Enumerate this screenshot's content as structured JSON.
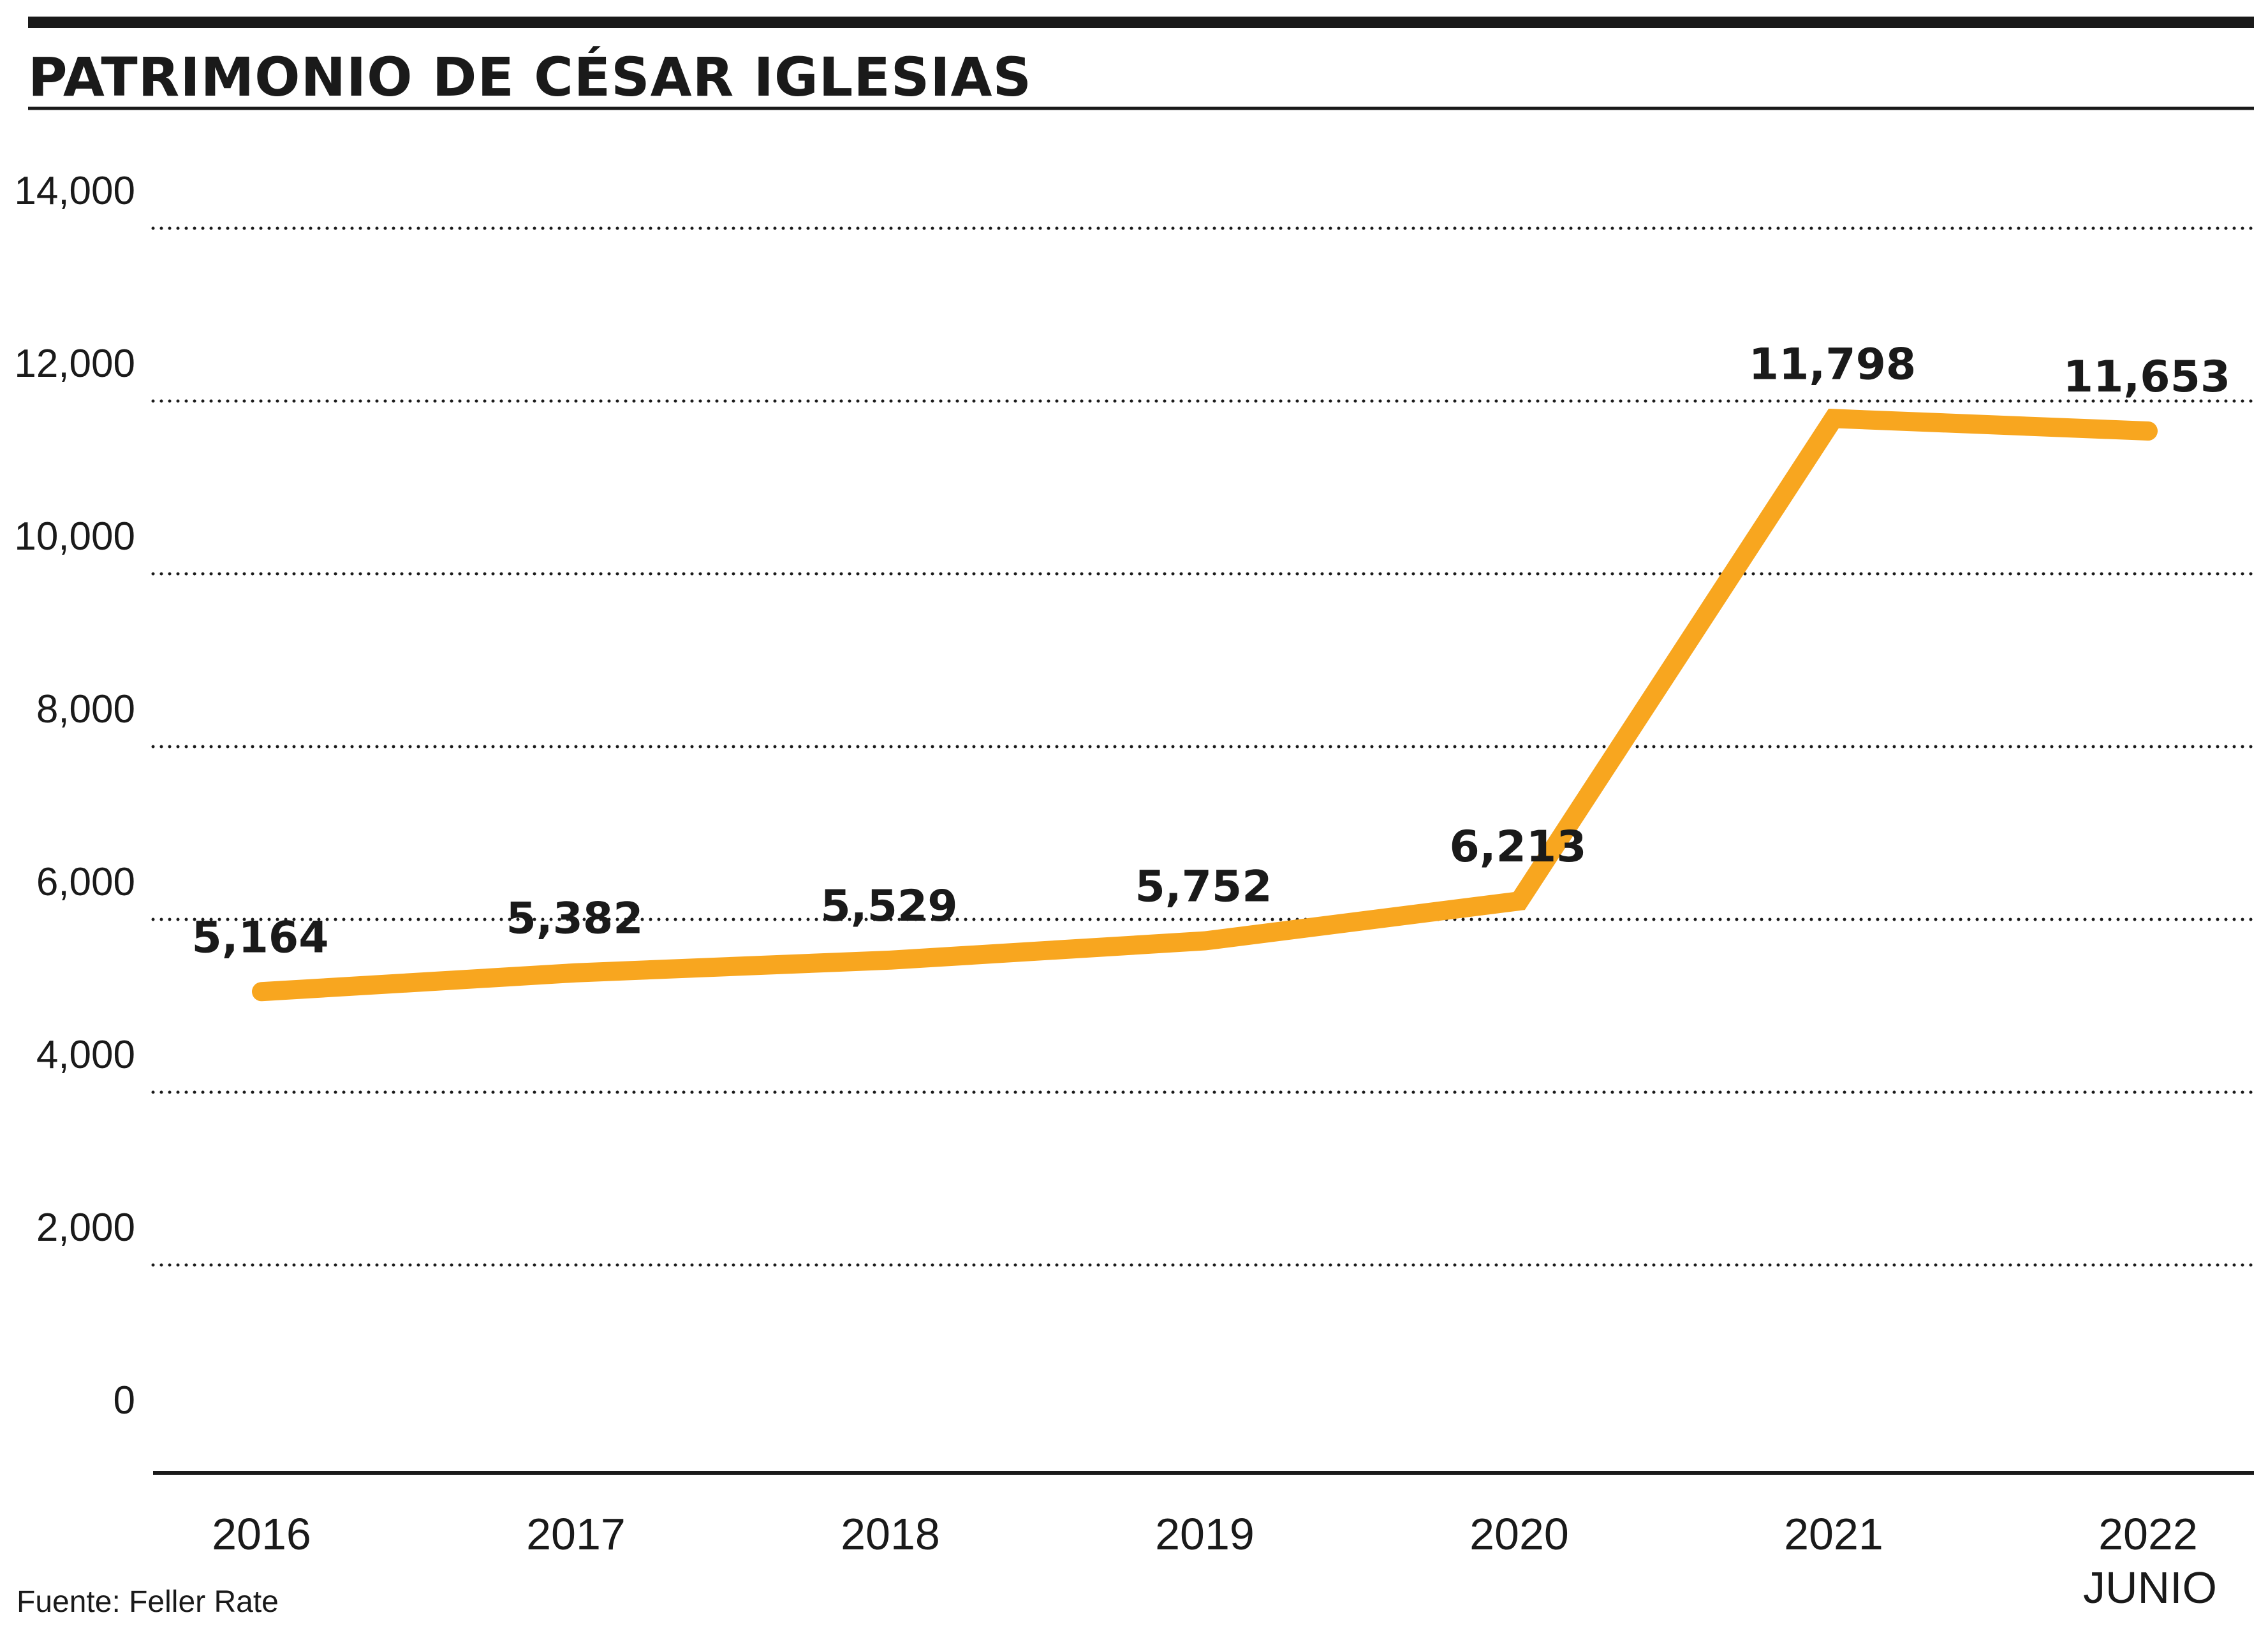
{
  "chart_data": {
    "type": "line",
    "title": "PATRIMONIO DE CÉSAR IGLESIAS",
    "categories": [
      "2016",
      "2017",
      "2018",
      "2019",
      "2020",
      "2021",
      "2022"
    ],
    "category_sublabels": [
      "",
      "",
      "",
      "",
      "",
      "",
      "JUNIO"
    ],
    "series": [
      {
        "values": [
          5164,
          5382,
          5529,
          5752,
          6213,
          11798,
          11653
        ],
        "labels": [
          "5,164",
          "5,382",
          "5,529",
          "5,752",
          "6,213",
          "11,798",
          "11,653"
        ],
        "color": "#F8A61F"
      }
    ],
    "yticks": [
      "0",
      "2,000",
      "4,000",
      "6,000",
      "8,000",
      "10,000",
      "12,000",
      "14,000"
    ],
    "ylim": [
      0,
      14000
    ],
    "grid": "dotted horizontal",
    "source": "Fuente: Feller Rate"
  }
}
